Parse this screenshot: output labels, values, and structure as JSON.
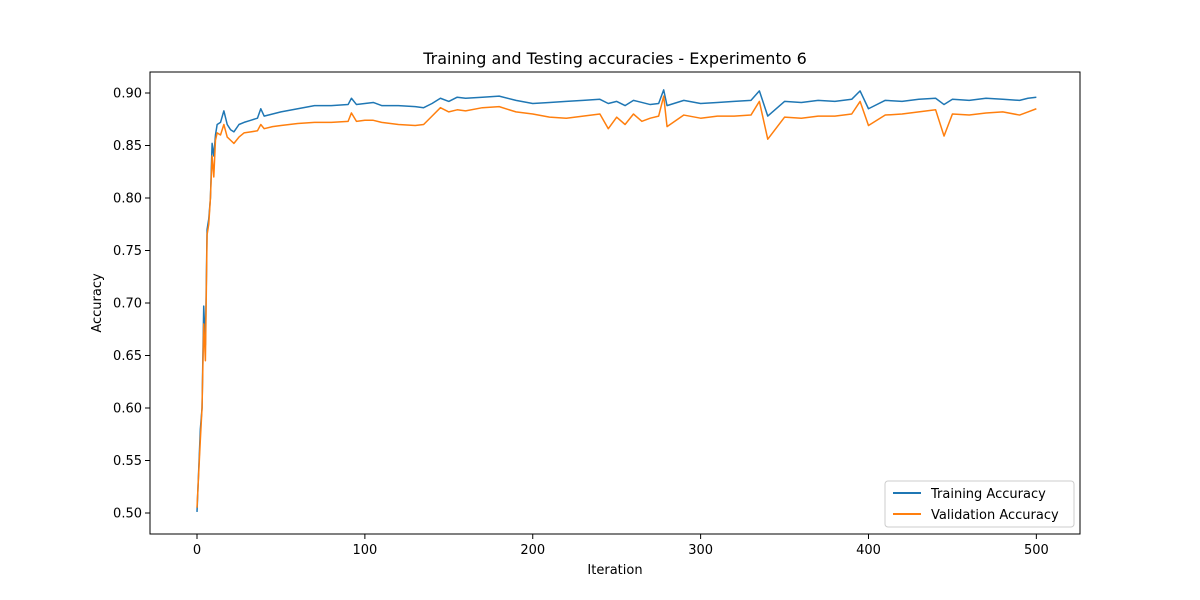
{
  "chart_data": {
    "type": "line",
    "title": "Training and Testing accuracies - Experimento 6",
    "xlabel": "Iteration",
    "ylabel": "Accuracy",
    "xlim": [
      -28,
      526
    ],
    "ylim": [
      0.48,
      0.92
    ],
    "x_ticks": [
      0,
      100,
      200,
      300,
      400,
      500
    ],
    "x_tick_labels": [
      "0",
      "100",
      "200",
      "300",
      "400",
      "500"
    ],
    "y_ticks": [
      0.5,
      0.55,
      0.6,
      0.65,
      0.7,
      0.75,
      0.8,
      0.85,
      0.9
    ],
    "y_tick_labels": [
      "0.50",
      "0.55",
      "0.60",
      "0.65",
      "0.70",
      "0.75",
      "0.80",
      "0.85",
      "0.90"
    ],
    "grid": false,
    "legend_position": "lower right",
    "series": [
      {
        "name": "Training Accuracy",
        "color": "#1f77b4",
        "x": [
          0,
          2,
          3,
          4,
          5,
          6,
          7,
          8,
          9,
          10,
          11,
          12,
          14,
          16,
          18,
          20,
          22,
          25,
          28,
          32,
          36,
          38,
          40,
          45,
          50,
          60,
          70,
          80,
          90,
          92,
          95,
          100,
          105,
          110,
          120,
          130,
          135,
          140,
          145,
          150,
          155,
          160,
          170,
          180,
          190,
          200,
          210,
          220,
          230,
          240,
          245,
          250,
          255,
          260,
          265,
          270,
          275,
          278,
          280,
          290,
          300,
          310,
          320,
          330,
          335,
          340,
          350,
          360,
          370,
          380,
          390,
          395,
          400,
          410,
          420,
          430,
          440,
          445,
          450,
          460,
          470,
          480,
          490,
          495,
          500
        ],
        "y": [
          0.501,
          0.58,
          0.6,
          0.697,
          0.66,
          0.77,
          0.78,
          0.8,
          0.852,
          0.84,
          0.86,
          0.87,
          0.872,
          0.883,
          0.87,
          0.865,
          0.863,
          0.87,
          0.872,
          0.874,
          0.876,
          0.885,
          0.878,
          0.88,
          0.882,
          0.885,
          0.888,
          0.888,
          0.889,
          0.895,
          0.889,
          0.89,
          0.891,
          0.888,
          0.888,
          0.887,
          0.886,
          0.89,
          0.895,
          0.892,
          0.896,
          0.895,
          0.896,
          0.897,
          0.893,
          0.89,
          0.891,
          0.892,
          0.893,
          0.894,
          0.89,
          0.892,
          0.888,
          0.893,
          0.891,
          0.889,
          0.89,
          0.903,
          0.888,
          0.893,
          0.89,
          0.891,
          0.892,
          0.893,
          0.902,
          0.878,
          0.892,
          0.891,
          0.893,
          0.892,
          0.894,
          0.902,
          0.885,
          0.893,
          0.892,
          0.894,
          0.895,
          0.889,
          0.894,
          0.893,
          0.895,
          0.894,
          0.893,
          0.895,
          0.896
        ]
      },
      {
        "name": "Validation Accuracy",
        "color": "#ff7f0e",
        "x": [
          0,
          2,
          3,
          4,
          5,
          6,
          7,
          8,
          9,
          10,
          11,
          12,
          14,
          16,
          18,
          20,
          22,
          25,
          28,
          32,
          36,
          38,
          40,
          45,
          50,
          60,
          70,
          80,
          90,
          92,
          95,
          100,
          105,
          110,
          120,
          130,
          135,
          140,
          145,
          150,
          155,
          160,
          170,
          180,
          190,
          200,
          210,
          220,
          230,
          240,
          245,
          250,
          255,
          260,
          265,
          270,
          275,
          278,
          280,
          290,
          300,
          310,
          320,
          330,
          335,
          340,
          350,
          360,
          370,
          380,
          390,
          395,
          400,
          410,
          420,
          430,
          440,
          445,
          450,
          460,
          470,
          480,
          490,
          495,
          500
        ],
        "y": [
          0.505,
          0.57,
          0.6,
          0.68,
          0.645,
          0.765,
          0.775,
          0.8,
          0.84,
          0.82,
          0.855,
          0.862,
          0.86,
          0.87,
          0.858,
          0.855,
          0.852,
          0.858,
          0.862,
          0.863,
          0.864,
          0.87,
          0.866,
          0.868,
          0.869,
          0.871,
          0.872,
          0.872,
          0.873,
          0.881,
          0.873,
          0.874,
          0.874,
          0.872,
          0.87,
          0.869,
          0.87,
          0.878,
          0.886,
          0.882,
          0.884,
          0.883,
          0.886,
          0.887,
          0.882,
          0.88,
          0.877,
          0.876,
          0.878,
          0.88,
          0.866,
          0.877,
          0.87,
          0.88,
          0.873,
          0.876,
          0.878,
          0.897,
          0.868,
          0.879,
          0.876,
          0.878,
          0.878,
          0.879,
          0.892,
          0.856,
          0.877,
          0.876,
          0.878,
          0.878,
          0.88,
          0.892,
          0.869,
          0.879,
          0.88,
          0.882,
          0.884,
          0.859,
          0.88,
          0.879,
          0.881,
          0.882,
          0.879,
          0.882,
          0.885
        ]
      }
    ]
  }
}
